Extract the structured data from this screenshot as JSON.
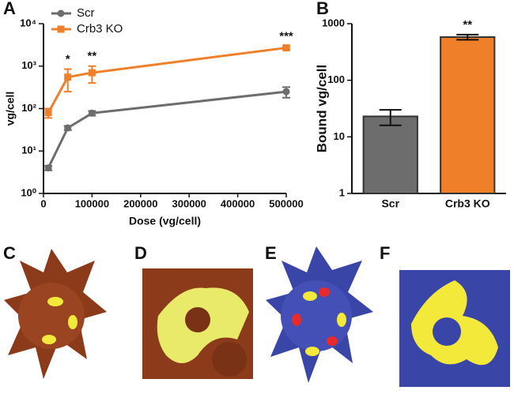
{
  "panel_labels": [
    "A",
    "B",
    "C",
    "D",
    "E",
    "F"
  ],
  "chart_data": [
    {
      "type": "line",
      "x_label": "Dose (vg/cell)",
      "y_label": "vg/cell",
      "log_y": true,
      "xlim": [
        0,
        500000
      ],
      "xticks": [
        0,
        100000,
        200000,
        300000,
        400000,
        500000
      ],
      "ylim": [
        1,
        10000
      ],
      "yticks": [
        {
          "value": 1,
          "label": "10⁰"
        },
        {
          "value": 10,
          "label": "10¹"
        },
        {
          "value": 100,
          "label": "10²"
        },
        {
          "value": 1000,
          "label": "10³"
        },
        {
          "value": 10000,
          "label": "10⁴"
        }
      ],
      "x": [
        10000,
        50000,
        100000,
        500000
      ],
      "series": [
        {
          "name": "Scr",
          "color": "#6d6d6d",
          "values": [
            4,
            35,
            78,
            250
          ],
          "errors": [
            0.5,
            4,
            10,
            70
          ]
        },
        {
          "name": "Crb3 KO",
          "color": "#f07f2a",
          "values": [
            80,
            550,
            700,
            2700
          ],
          "errors": [
            20,
            300,
            300,
            250
          ]
        }
      ],
      "annotations": [
        {
          "text": "*",
          "x": 50000
        },
        {
          "text": "**",
          "x": 100000
        },
        {
          "text": "***",
          "x": 500000
        }
      ]
    },
    {
      "type": "bar",
      "y_label": "Bound vg/cell",
      "log_y": true,
      "ylim": [
        1,
        1000
      ],
      "yticks": [
        1,
        10,
        100,
        1000
      ],
      "categories": [
        "Scr",
        "Crb3 KO"
      ],
      "values": [
        23,
        580
      ],
      "errors": [
        7,
        60
      ],
      "colors": [
        "#6d6d6d",
        "#f07f2a"
      ],
      "annotations": [
        {
          "text": "**",
          "category": 1
        }
      ]
    }
  ]
}
